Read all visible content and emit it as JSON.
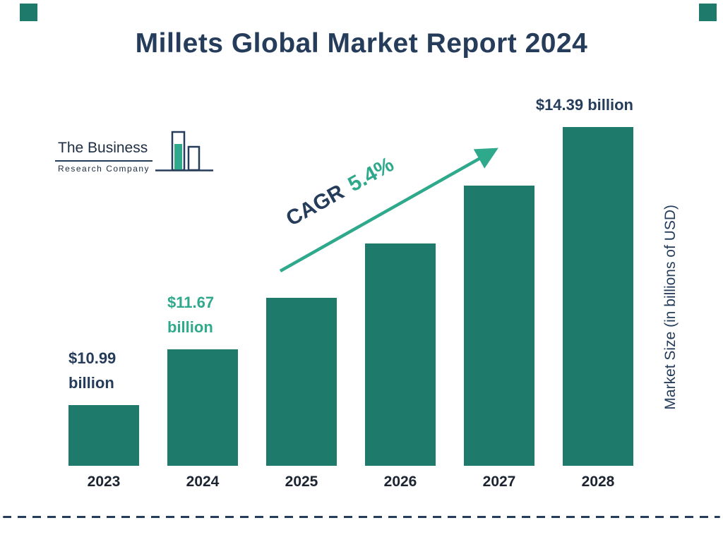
{
  "title": "Millets Global Market Report 2024",
  "logo": {
    "line1": "The Business",
    "line2": "Research Company"
  },
  "cagr": {
    "prefix": "CAGR",
    "value": "5.4%"
  },
  "colors": {
    "navy": "#253c5a",
    "teal": "#1e7a6a",
    "green": "#2fa98c"
  },
  "chart_data": {
    "type": "bar",
    "title": "Millets Global Market Report 2024",
    "categories": [
      "2023",
      "2024",
      "2025",
      "2026",
      "2027",
      "2028"
    ],
    "values": [
      10.99,
      11.67,
      12.3,
      12.97,
      13.67,
      14.39
    ],
    "xlabel": "",
    "ylabel": "Market Size (in billions of USD)",
    "ylim": [
      10.25,
      14.39
    ],
    "bar_color": "#1e7a6a",
    "grid": false,
    "legend": false,
    "cagr_annotation": "CAGR 5.4%",
    "annotations": [
      {
        "index": 0,
        "lines": [
          "$10.99",
          "billion"
        ],
        "color": "#253c5a",
        "align": "left"
      },
      {
        "index": 1,
        "lines": [
          "$11.67",
          "billion"
        ],
        "color": "#2fa98c",
        "align": "left"
      },
      {
        "index": 5,
        "lines": [
          "$14.39 billion"
        ],
        "color": "#253c5a",
        "align": "right"
      }
    ]
  }
}
